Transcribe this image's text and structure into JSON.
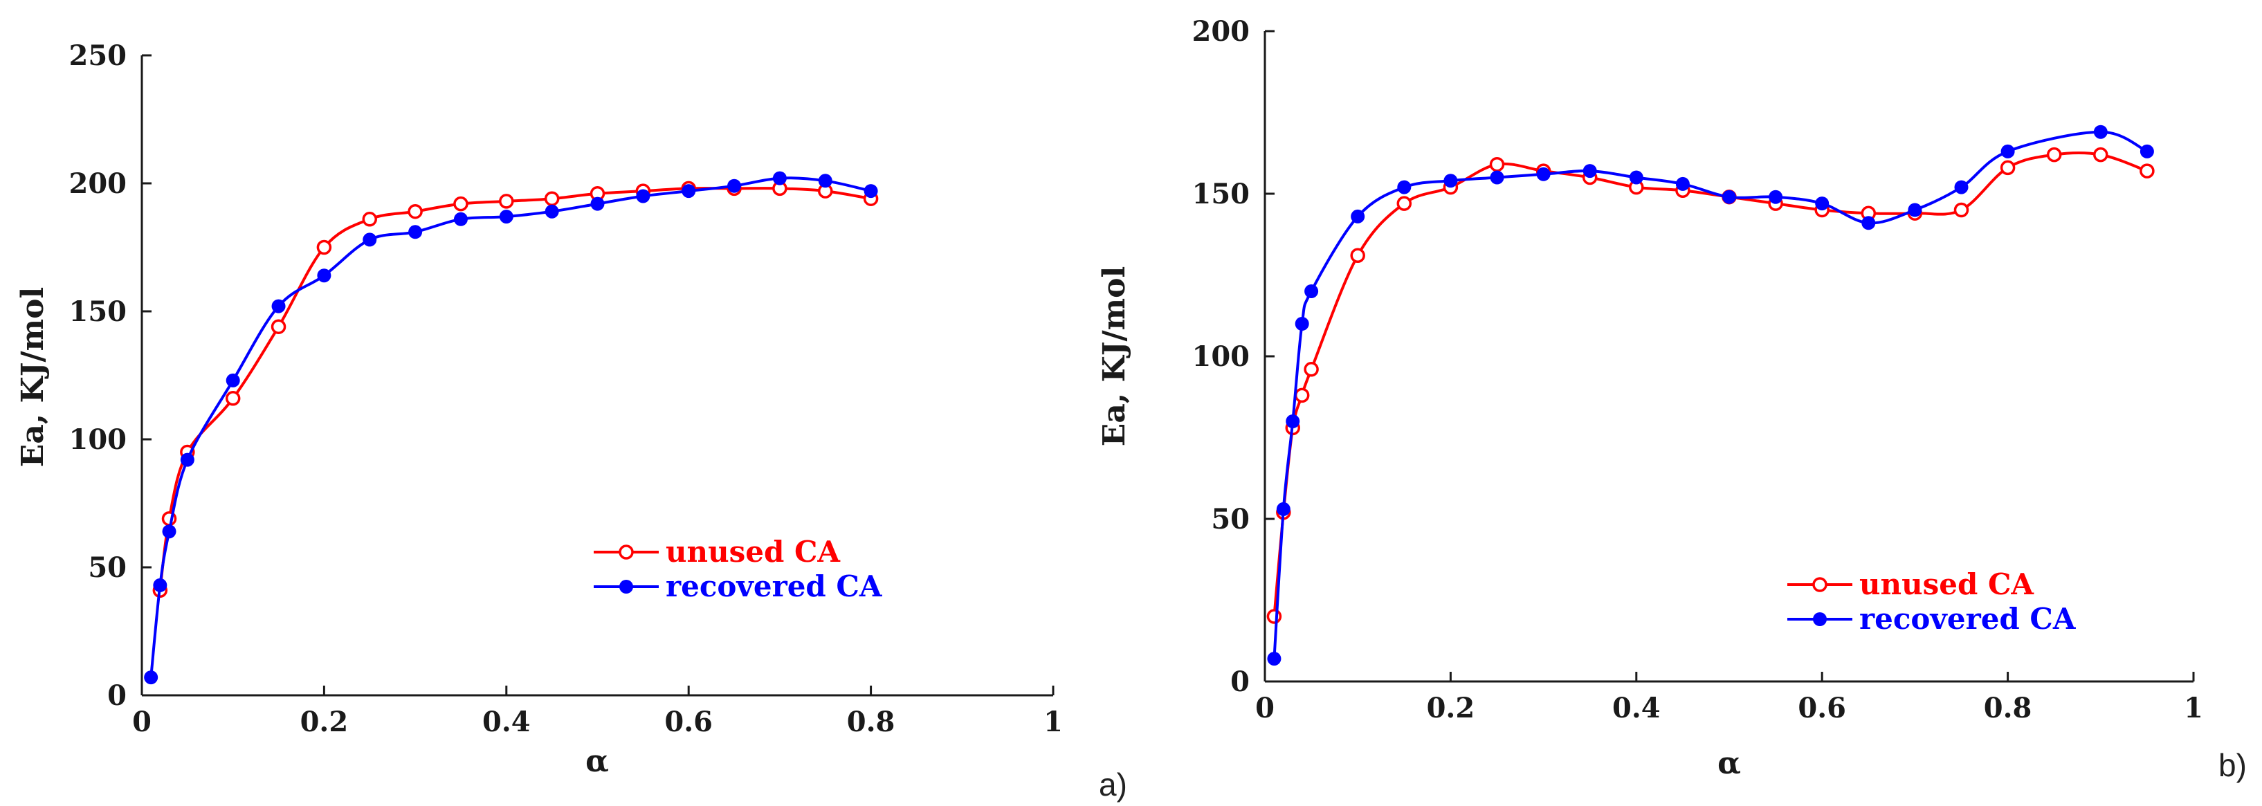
{
  "chart_data": [
    {
      "type": "line",
      "panel_label": "a)",
      "title": "",
      "xlabel": "α",
      "ylabel": "Ea, KJ/mol",
      "xlim": [
        0,
        1
      ],
      "ylim": [
        0,
        250
      ],
      "xticks": [
        0,
        0.2,
        0.4,
        0.6,
        0.8,
        1
      ],
      "xtick_labels": [
        "0",
        "0.2",
        "0.4",
        "0.6",
        "0.8",
        "1"
      ],
      "yticks": [
        0,
        50,
        100,
        150,
        200,
        250
      ],
      "ytick_labels": [
        "0",
        "50",
        "100",
        "150",
        "200",
        "250"
      ],
      "grid": false,
      "legend_position": "lower-right",
      "series": [
        {
          "name": "unused CA",
          "color": "#ff0000",
          "marker": "open-circle",
          "x": [
            0.02,
            0.03,
            0.05,
            0.1,
            0.15,
            0.2,
            0.25,
            0.3,
            0.35,
            0.4,
            0.45,
            0.5,
            0.55,
            0.6,
            0.65,
            0.7,
            0.75,
            0.8
          ],
          "y": [
            41,
            69,
            95,
            116,
            144,
            175,
            186,
            189,
            192,
            193,
            194,
            196,
            197,
            198,
            198,
            198,
            197,
            194
          ]
        },
        {
          "name": "recovered CA",
          "color": "#0000ff",
          "marker": "filled-circle",
          "x": [
            0.01,
            0.02,
            0.03,
            0.05,
            0.1,
            0.15,
            0.2,
            0.25,
            0.3,
            0.35,
            0.4,
            0.45,
            0.5,
            0.55,
            0.6,
            0.65,
            0.7,
            0.75,
            0.8
          ],
          "y": [
            7,
            43,
            64,
            92,
            123,
            152,
            164,
            178,
            181,
            186,
            187,
            189,
            192,
            195,
            197,
            199,
            202,
            201,
            197
          ]
        }
      ]
    },
    {
      "type": "line",
      "panel_label": "b)",
      "title": "",
      "xlabel": "α",
      "ylabel": "Ea, KJ/mol",
      "xlim": [
        0,
        1
      ],
      "ylim": [
        0,
        200
      ],
      "xticks": [
        0,
        0.2,
        0.4,
        0.6,
        0.8,
        1
      ],
      "xtick_labels": [
        "0",
        "0.2",
        "0.4",
        "0.6",
        "0.8",
        "1"
      ],
      "yticks": [
        0,
        50,
        100,
        150,
        200
      ],
      "ytick_labels": [
        "0",
        "50",
        "100",
        "150",
        "200"
      ],
      "grid": false,
      "legend_position": "lower-right",
      "series": [
        {
          "name": "unused CA",
          "color": "#ff0000",
          "marker": "open-circle",
          "x": [
            0.01,
            0.02,
            0.03,
            0.04,
            0.05,
            0.1,
            0.15,
            0.2,
            0.25,
            0.3,
            0.35,
            0.4,
            0.45,
            0.5,
            0.55,
            0.6,
            0.65,
            0.7,
            0.75,
            0.8,
            0.85,
            0.9,
            0.95
          ],
          "y": [
            20,
            52,
            78,
            88,
            96,
            131,
            147,
            152,
            159,
            157,
            155,
            152,
            151,
            149,
            147,
            145,
            144,
            144,
            145,
            158,
            162,
            162,
            157
          ]
        },
        {
          "name": "recovered CA",
          "color": "#0000ff",
          "marker": "filled-circle",
          "x": [
            0.01,
            0.02,
            0.03,
            0.04,
            0.05,
            0.1,
            0.15,
            0.2,
            0.25,
            0.3,
            0.35,
            0.4,
            0.45,
            0.5,
            0.55,
            0.6,
            0.65,
            0.7,
            0.75,
            0.8,
            0.9,
            0.95
          ],
          "y": [
            7,
            53,
            80,
            110,
            120,
            143,
            152,
            154,
            155,
            156,
            157,
            155,
            153,
            149,
            149,
            147,
            141,
            145,
            152,
            163,
            169,
            163
          ]
        }
      ]
    }
  ]
}
